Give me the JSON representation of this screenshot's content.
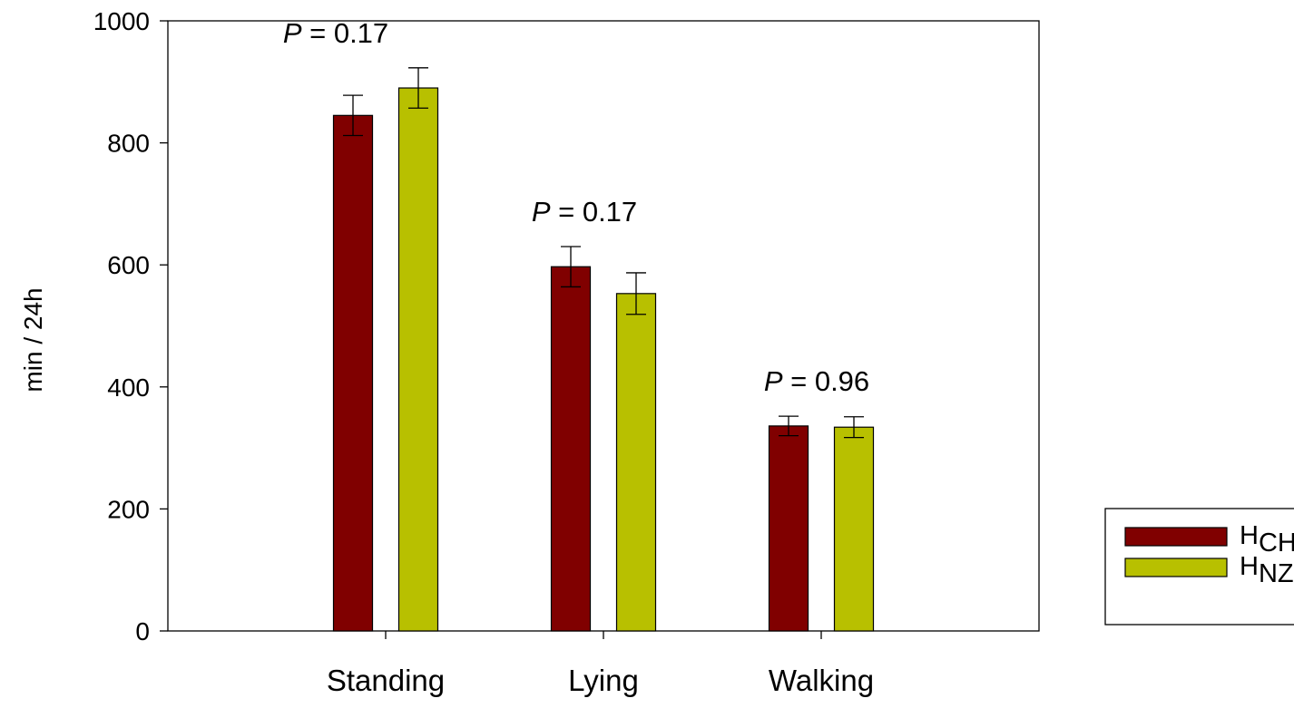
{
  "chart_data": {
    "type": "bar",
    "categories": [
      "Standing",
      "Lying",
      "Walking"
    ],
    "series": [
      {
        "name": "HCH",
        "label_main": "H",
        "label_sub": "CH",
        "color": "#800000",
        "values": [
          845,
          597,
          336
        ],
        "errors": [
          33,
          33,
          16
        ]
      },
      {
        "name": "HNZ",
        "label_main": "H",
        "label_sub": "NZ",
        "color": "#b8c000",
        "values": [
          890,
          553,
          334
        ],
        "errors": [
          33,
          34,
          17
        ]
      }
    ],
    "annotations": [
      {
        "category": "Standing",
        "italic": "P",
        "text": " = 0.17"
      },
      {
        "category": "Lying",
        "italic": "P",
        "text": " = 0.17"
      },
      {
        "category": "Walking",
        "italic": "P",
        "text": " = 0.96"
      }
    ],
    "ylabel": "min / 24h",
    "xlabel": "",
    "ylim": [
      0,
      1000
    ],
    "yticks": [
      0,
      200,
      400,
      600,
      800,
      1000
    ],
    "grid": false,
    "legend_position": "bottom-right"
  }
}
